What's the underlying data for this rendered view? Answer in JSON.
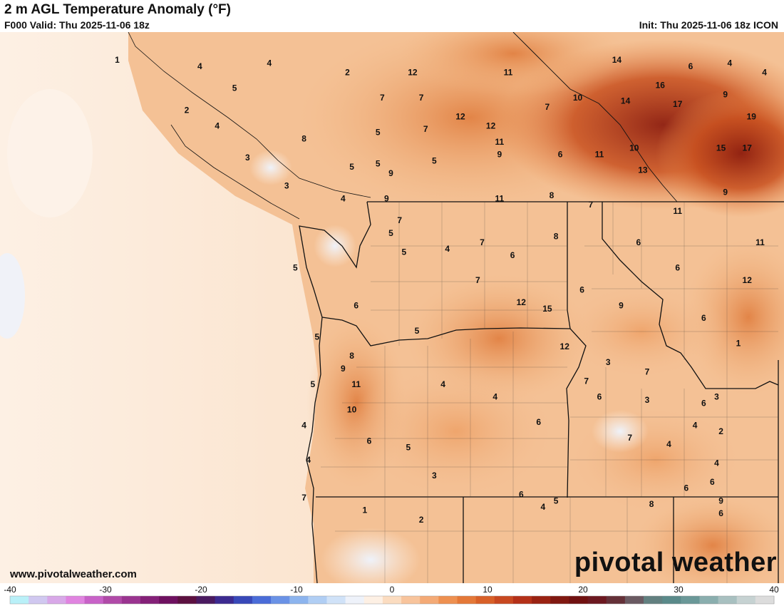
{
  "header": {
    "title": "2 m AGL Temperature Anomaly (°F)",
    "valid": "F000 Valid: Thu 2025-11-06 18z",
    "init": "Init: Thu 2025-11-06 18z ICON"
  },
  "footer": {
    "website": "www.pivotalweather.com",
    "brand": "pivotal weather"
  },
  "colors": {
    "ocean": "#fbe6d3",
    "land_warm": "#f2b47e",
    "hot": "#c8501f",
    "very_hot": "#8e1f10",
    "cool": "#f0f2f8",
    "borders": "#111111"
  },
  "legend": {
    "ticks": [
      "-40",
      "-30",
      "-20",
      "-10",
      "0",
      "10",
      "20",
      "30",
      "40"
    ],
    "min": -40,
    "max": 40,
    "colors": [
      "#b9f0f8",
      "#d0c8f0",
      "#d8a8e8",
      "#e084e0",
      "#c862c8",
      "#b04aa8",
      "#9a3490",
      "#842078",
      "#6e1060",
      "#5c1040",
      "#4a1a60",
      "#3c2a90",
      "#3848b8",
      "#4a6cd8",
      "#6a92e6",
      "#8cb4ee",
      "#b0cef4",
      "#d0e2f8",
      "#eef2fa",
      "#fdf0e4",
      "#fbdcc0",
      "#f8c49c",
      "#f4aa76",
      "#ee9050",
      "#e47838",
      "#d86028",
      "#c84820",
      "#b43018",
      "#9a2212",
      "#801810",
      "#701010",
      "#6c1820",
      "#643038",
      "#6a5a62",
      "#628080",
      "#5a8a8a",
      "#6a9898",
      "#8aaeae",
      "#a8c0c0",
      "#c6d2d2",
      "#dcdcdc"
    ]
  },
  "labels": [
    {
      "t": "1",
      "lon": -125.9,
      "lat": 50.4
    },
    {
      "t": "4",
      "lon": -124.0,
      "lat": 50.3
    },
    {
      "t": "4",
      "lon": -122.4,
      "lat": 50.35
    },
    {
      "t": "2",
      "lon": -120.6,
      "lat": 50.2
    },
    {
      "t": "12",
      "lon": -119.1,
      "lat": 50.2
    },
    {
      "t": "11",
      "lon": -116.9,
      "lat": 50.2
    },
    {
      "t": "14",
      "lon": -114.4,
      "lat": 50.4
    },
    {
      "t": "6",
      "lon": -112.7,
      "lat": 50.3
    },
    {
      "t": "4",
      "lon": -111.8,
      "lat": 50.35
    },
    {
      "t": "4",
      "lon": -111.0,
      "lat": 50.2
    },
    {
      "t": "5",
      "lon": -123.2,
      "lat": 49.95
    },
    {
      "t": "7",
      "lon": -119.8,
      "lat": 49.8
    },
    {
      "t": "7",
      "lon": -118.9,
      "lat": 49.8
    },
    {
      "t": "10",
      "lon": -115.3,
      "lat": 49.8
    },
    {
      "t": "16",
      "lon": -113.4,
      "lat": 50.0
    },
    {
      "t": "9",
      "lon": -111.9,
      "lat": 49.85
    },
    {
      "t": "7",
      "lon": -116.0,
      "lat": 49.65
    },
    {
      "t": "14",
      "lon": -114.2,
      "lat": 49.75
    },
    {
      "t": "17",
      "lon": -113.0,
      "lat": 49.7
    },
    {
      "t": "2",
      "lon": -124.3,
      "lat": 49.6
    },
    {
      "t": "12",
      "lon": -118.0,
      "lat": 49.5
    },
    {
      "t": "4",
      "lon": -123.6,
      "lat": 49.35
    },
    {
      "t": "12",
      "lon": -117.3,
      "lat": 49.35
    },
    {
      "t": "19",
      "lon": -111.3,
      "lat": 49.5
    },
    {
      "t": "5",
      "lon": -119.9,
      "lat": 49.25
    },
    {
      "t": "7",
      "lon": -118.8,
      "lat": 49.3
    },
    {
      "t": "8",
      "lon": -121.6,
      "lat": 49.15
    },
    {
      "t": "11",
      "lon": -117.1,
      "lat": 49.1
    },
    {
      "t": "10",
      "lon": -114.0,
      "lat": 49.0
    },
    {
      "t": "15",
      "lon": -112.0,
      "lat": 49.0
    },
    {
      "t": "17",
      "lon": -111.4,
      "lat": 49.0
    },
    {
      "t": "3",
      "lon": -122.9,
      "lat": 48.85
    },
    {
      "t": "9",
      "lon": -117.1,
      "lat": 48.9
    },
    {
      "t": "6",
      "lon": -115.7,
      "lat": 48.9
    },
    {
      "t": "11",
      "lon": -114.8,
      "lat": 48.9
    },
    {
      "t": "5",
      "lon": -120.5,
      "lat": 48.7
    },
    {
      "t": "5",
      "lon": -119.9,
      "lat": 48.75
    },
    {
      "t": "5",
      "lon": -118.6,
      "lat": 48.8
    },
    {
      "t": "9",
      "lon": -119.6,
      "lat": 48.6
    },
    {
      "t": "13",
      "lon": -113.8,
      "lat": 48.65
    },
    {
      "t": "3",
      "lon": -122.0,
      "lat": 48.4
    },
    {
      "t": "4",
      "lon": -120.7,
      "lat": 48.2
    },
    {
      "t": "9",
      "lon": -119.7,
      "lat": 48.2
    },
    {
      "t": "11",
      "lon": -117.1,
      "lat": 48.2
    },
    {
      "t": "8",
      "lon": -115.9,
      "lat": 48.25
    },
    {
      "t": "7",
      "lon": -115.0,
      "lat": 48.1
    },
    {
      "t": "11",
      "lon": -113.0,
      "lat": 48.0
    },
    {
      "t": "9",
      "lon": -111.9,
      "lat": 48.3
    },
    {
      "t": "7",
      "lon": -119.4,
      "lat": 47.85
    },
    {
      "t": "5",
      "lon": -119.6,
      "lat": 47.65
    },
    {
      "t": "8",
      "lon": -115.8,
      "lat": 47.6
    },
    {
      "t": "6",
      "lon": -113.9,
      "lat": 47.5
    },
    {
      "t": "11",
      "lon": -111.1,
      "lat": 47.5
    },
    {
      "t": "4",
      "lon": -118.3,
      "lat": 47.4
    },
    {
      "t": "7",
      "lon": -117.5,
      "lat": 47.5
    },
    {
      "t": "5",
      "lon": -119.3,
      "lat": 47.35
    },
    {
      "t": "6",
      "lon": -116.8,
      "lat": 47.3
    },
    {
      "t": "6",
      "lon": -113.0,
      "lat": 47.1
    },
    {
      "t": "5",
      "lon": -121.8,
      "lat": 47.1
    },
    {
      "t": "7",
      "lon": -117.6,
      "lat": 46.9
    },
    {
      "t": "12",
      "lon": -111.4,
      "lat": 46.9
    },
    {
      "t": "6",
      "lon": -115.2,
      "lat": 46.75
    },
    {
      "t": "12",
      "lon": -116.6,
      "lat": 46.55
    },
    {
      "t": "15",
      "lon": -116.0,
      "lat": 46.45
    },
    {
      "t": "9",
      "lon": -114.3,
      "lat": 46.5
    },
    {
      "t": "6",
      "lon": -120.4,
      "lat": 46.5
    },
    {
      "t": "6",
      "lon": -112.4,
      "lat": 46.3
    },
    {
      "t": "5",
      "lon": -119.0,
      "lat": 46.1
    },
    {
      "t": "5",
      "lon": -121.3,
      "lat": 46.0
    },
    {
      "t": "12",
      "lon": -115.6,
      "lat": 45.85
    },
    {
      "t": "1",
      "lon": -111.6,
      "lat": 45.9
    },
    {
      "t": "8",
      "lon": -120.5,
      "lat": 45.7
    },
    {
      "t": "3",
      "lon": -114.6,
      "lat": 45.6
    },
    {
      "t": "9",
      "lon": -120.7,
      "lat": 45.5
    },
    {
      "t": "7",
      "lon": -113.7,
      "lat": 45.45
    },
    {
      "t": "5",
      "lon": -121.4,
      "lat": 45.25
    },
    {
      "t": "11",
      "lon": -120.4,
      "lat": 45.25
    },
    {
      "t": "4",
      "lon": -118.4,
      "lat": 45.25
    },
    {
      "t": "7",
      "lon": -115.1,
      "lat": 45.3
    },
    {
      "t": "3",
      "lon": -112.1,
      "lat": 45.05
    },
    {
      "t": "6",
      "lon": -114.8,
      "lat": 45.05
    },
    {
      "t": "4",
      "lon": -117.2,
      "lat": 45.05
    },
    {
      "t": "3",
      "lon": -113.7,
      "lat": 45.0
    },
    {
      "t": "6",
      "lon": -112.4,
      "lat": 44.95
    },
    {
      "t": "10",
      "lon": -120.5,
      "lat": 44.85
    },
    {
      "t": "6",
      "lon": -116.2,
      "lat": 44.65
    },
    {
      "t": "4",
      "lon": -112.6,
      "lat": 44.6
    },
    {
      "t": "2",
      "lon": -112.0,
      "lat": 44.5
    },
    {
      "t": "4",
      "lon": -121.6,
      "lat": 44.6
    },
    {
      "t": "7",
      "lon": -114.1,
      "lat": 44.4
    },
    {
      "t": "6",
      "lon": -120.1,
      "lat": 44.35
    },
    {
      "t": "4",
      "lon": -113.2,
      "lat": 44.3
    },
    {
      "t": "5",
      "lon": -119.2,
      "lat": 44.25
    },
    {
      "t": "4",
      "lon": -121.5,
      "lat": 44.05
    },
    {
      "t": "4",
      "lon": -112.1,
      "lat": 44.0
    },
    {
      "t": "3",
      "lon": -118.6,
      "lat": 43.8
    },
    {
      "t": "6",
      "lon": -112.2,
      "lat": 43.7
    },
    {
      "t": "6",
      "lon": -112.8,
      "lat": 43.6
    },
    {
      "t": "7",
      "lon": -121.6,
      "lat": 43.45
    },
    {
      "t": "6",
      "lon": -116.6,
      "lat": 43.5
    },
    {
      "t": "5",
      "lon": -115.8,
      "lat": 43.4
    },
    {
      "t": "9",
      "lon": -112.0,
      "lat": 43.4
    },
    {
      "t": "4",
      "lon": -116.1,
      "lat": 43.3
    },
    {
      "t": "8",
      "lon": -113.6,
      "lat": 43.35
    },
    {
      "t": "6",
      "lon": -112.0,
      "lat": 43.2
    },
    {
      "t": "1",
      "lon": -120.2,
      "lat": 43.25
    },
    {
      "t": "2",
      "lon": -118.9,
      "lat": 43.1
    }
  ]
}
